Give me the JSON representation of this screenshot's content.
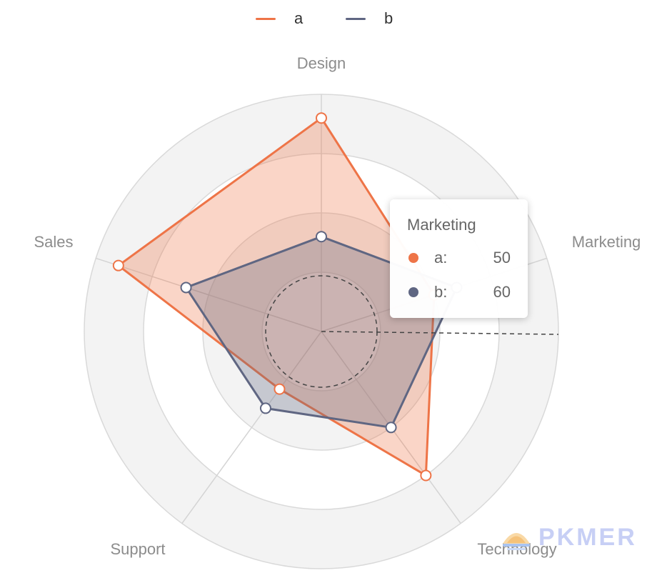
{
  "legend": {
    "items": [
      {
        "label": "a",
        "color": "#ee7447"
      },
      {
        "label": "b",
        "color": "#5f6682"
      }
    ]
  },
  "chart_data": {
    "type": "radar",
    "indicators": [
      {
        "name": "Design",
        "max": 100
      },
      {
        "name": "Marketing",
        "max": 100
      },
      {
        "name": "Technology",
        "max": 100
      },
      {
        "name": "Support",
        "max": 100
      },
      {
        "name": "Sales",
        "max": 100
      }
    ],
    "series": [
      {
        "name": "a",
        "color": "#ee7447",
        "values": [
          90,
          50,
          75,
          30,
          90
        ]
      },
      {
        "name": "b",
        "color": "#5f6682",
        "values": [
          40,
          60,
          50,
          40,
          60
        ]
      }
    ],
    "split_rings": 4,
    "split_area_colors": [
      "#ffffff",
      "#f3f3f3"
    ],
    "dashed_crosshair": true
  },
  "tooltip": {
    "title": "Marketing",
    "rows": [
      {
        "name": "a:",
        "value": "50",
        "color": "#ee7447"
      },
      {
        "name": "b:",
        "value": "60",
        "color": "#5f6682"
      }
    ]
  },
  "watermark": {
    "text": "PKMER"
  }
}
